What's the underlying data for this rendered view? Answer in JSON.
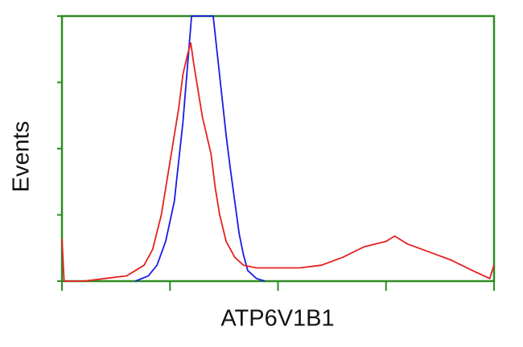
{
  "chart_data": {
    "type": "line",
    "xlabel": "ATP6V1B1",
    "ylabel": "Events",
    "xlim": [
      0,
      100
    ],
    "ylim": [
      0,
      100
    ],
    "xticks": [
      0,
      25,
      50,
      75,
      100
    ],
    "yticks": [
      0,
      25,
      50,
      75,
      100
    ],
    "frame_color": "#2e8b22",
    "series": [
      {
        "color": "#1a1ae6",
        "x": [
          17,
          20,
          22,
          24,
          26,
          27,
          28,
          29,
          30,
          35,
          36,
          37,
          38,
          39,
          40,
          41,
          42,
          43,
          45,
          47
        ],
        "values": [
          0,
          2,
          6,
          15,
          30,
          45,
          60,
          80,
          100,
          100,
          85,
          70,
          55,
          42,
          30,
          18,
          10,
          4,
          1,
          0
        ]
      },
      {
        "color": "#e62020",
        "x": [
          0,
          0.5,
          5,
          10,
          15,
          17,
          19,
          21,
          23,
          25,
          26,
          27,
          28,
          29,
          29.8,
          30.5,
          31.5,
          32.5,
          33.5,
          34.5,
          35.5,
          36.5,
          38,
          40,
          42,
          45,
          50,
          55,
          60,
          65,
          70,
          75,
          77,
          80,
          85,
          90,
          95,
          99,
          100
        ],
        "values": [
          16,
          0,
          0,
          1,
          2,
          4,
          6,
          12,
          25,
          45,
          55,
          65,
          78,
          85,
          90,
          82,
          72,
          62,
          55,
          48,
          35,
          25,
          15,
          9,
          6,
          5,
          5,
          5,
          6,
          9,
          13,
          15,
          17,
          14,
          11,
          8,
          4,
          1,
          6
        ]
      }
    ]
  }
}
